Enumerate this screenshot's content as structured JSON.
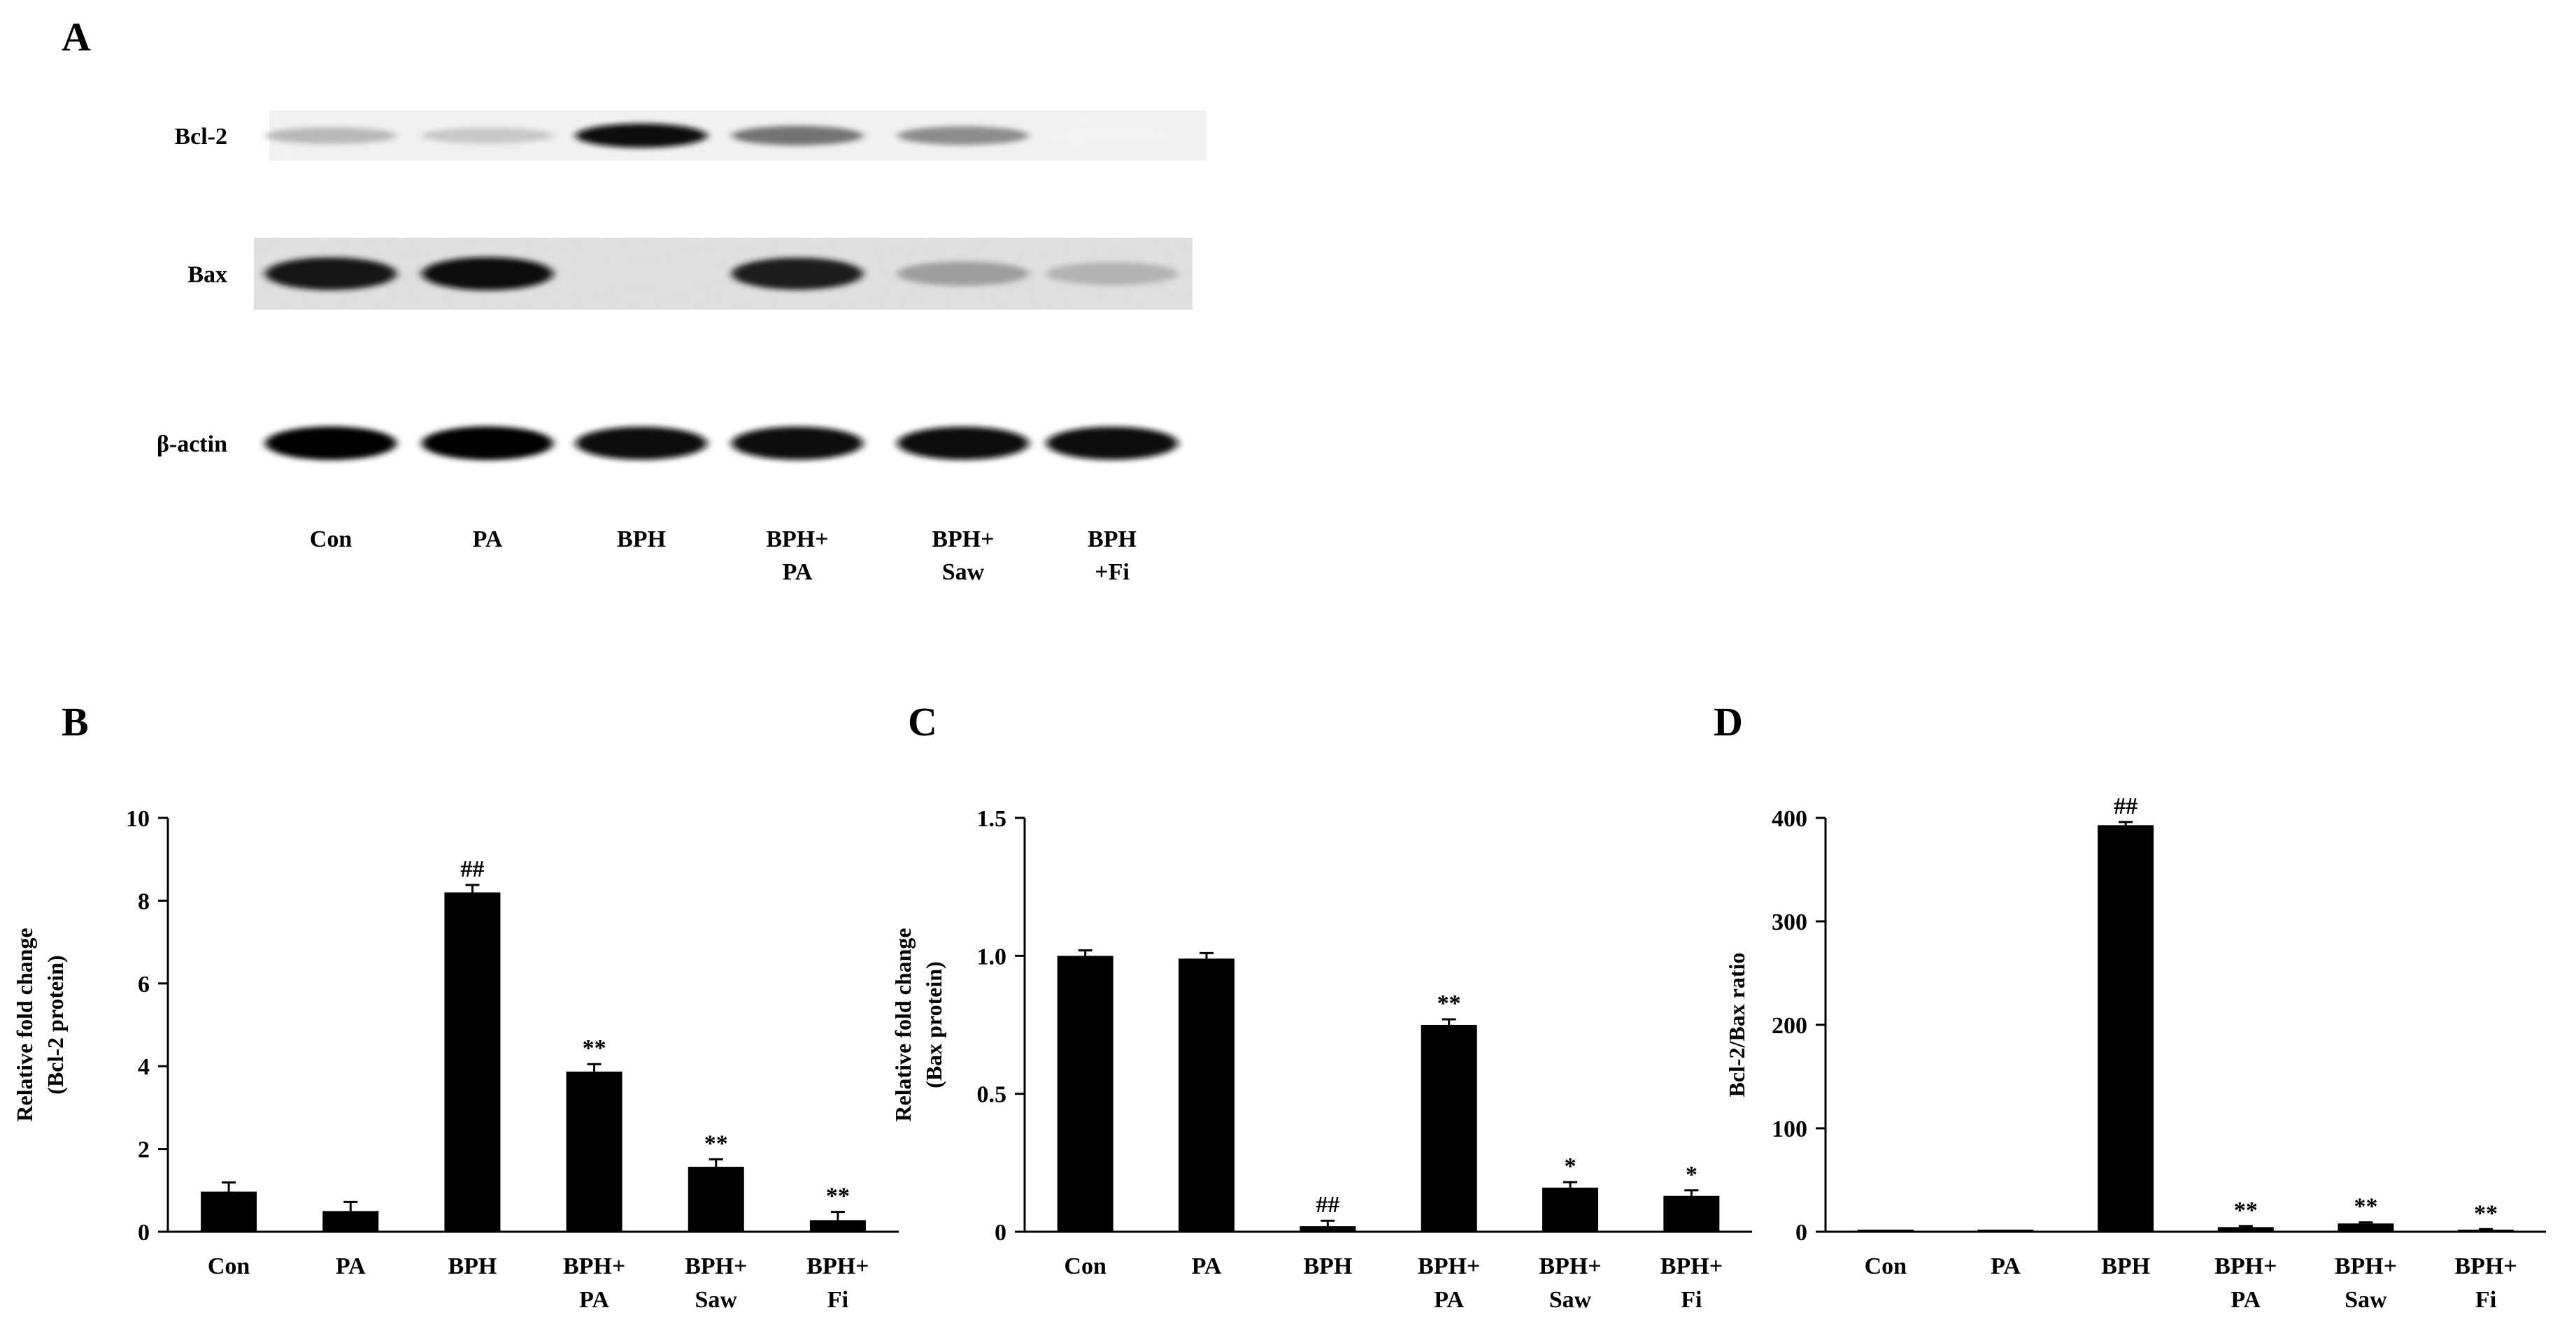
{
  "panels": {
    "A": {
      "letter": "A",
      "rows": [
        {
          "label": "Bcl-2",
          "intensity": [
            0.28,
            0.22,
            0.95,
            0.55,
            0.45,
            0.05
          ]
        },
        {
          "label": "Bax",
          "intensity": [
            0.92,
            0.95,
            0.12,
            0.88,
            0.38,
            0.3
          ]
        },
        {
          "label": "β-actin",
          "intensity": [
            0.98,
            0.99,
            0.95,
            0.96,
            0.96,
            0.95
          ]
        }
      ],
      "lanes": [
        [
          "Con"
        ],
        [
          "PA"
        ],
        [
          "BPH"
        ],
        [
          "BPH+",
          "PA"
        ],
        [
          "BPH+",
          "Saw"
        ],
        [
          "BPH",
          "+Fi"
        ]
      ]
    }
  },
  "chart_data": [
    {
      "panel": "B",
      "type": "bar",
      "categories": [
        [
          "Con"
        ],
        [
          "PA"
        ],
        [
          "BPH"
        ],
        [
          "BPH+",
          "PA"
        ],
        [
          "BPH+",
          "Saw"
        ],
        [
          "BPH+",
          "Fi"
        ]
      ],
      "values": [
        0.97,
        0.5,
        8.2,
        3.87,
        1.57,
        0.28
      ],
      "errors": [
        0.22,
        0.22,
        0.18,
        0.18,
        0.18,
        0.2
      ],
      "annotations": [
        "",
        "",
        "##",
        "**",
        "**",
        "**"
      ],
      "ylabel": [
        "Relative fold change",
        "(Bcl-2 protein)"
      ],
      "ylim": [
        0,
        10
      ],
      "yticks": [
        0,
        2,
        4,
        6,
        8,
        10
      ],
      "ytick_labels": [
        "0",
        "2",
        "4",
        "6",
        "8",
        "10"
      ],
      "color": "#000000"
    },
    {
      "panel": "C",
      "type": "bar",
      "categories": [
        [
          "Con"
        ],
        [
          "PA"
        ],
        [
          "BPH"
        ],
        [
          "BPH+",
          "PA"
        ],
        [
          "BPH+",
          "Saw"
        ],
        [
          "BPH+",
          "Fi"
        ]
      ],
      "values": [
        1.0,
        0.99,
        0.02,
        0.75,
        0.16,
        0.13
      ],
      "errors": [
        0.02,
        0.02,
        0.02,
        0.02,
        0.02,
        0.02
      ],
      "annotations": [
        "",
        "",
        "##",
        "**",
        "*",
        "*"
      ],
      "ylabel": [
        "Relative fold change",
        "(Bax protein)"
      ],
      "ylim": [
        0,
        1.5
      ],
      "yticks": [
        0,
        0.5,
        1.0,
        1.5
      ],
      "ytick_labels": [
        "0",
        "0.5",
        "1.0",
        "1.5"
      ],
      "color": "#000000"
    },
    {
      "panel": "D",
      "type": "bar",
      "categories": [
        [
          "Con"
        ],
        [
          "PA"
        ],
        [
          "BPH"
        ],
        [
          "BPH+",
          "PA"
        ],
        [
          "BPH+",
          "Saw"
        ],
        [
          "BPH+",
          "Fi"
        ]
      ],
      "values": [
        0.5,
        0.5,
        393,
        4.5,
        8,
        2
      ],
      "errors": [
        0,
        0,
        3,
        1,
        1,
        0.5
      ],
      "annotations": [
        "",
        "",
        "##",
        "**",
        "**",
        "**"
      ],
      "ylabel": [
        "Bcl-2/Bax ratio"
      ],
      "ylim": [
        0,
        400
      ],
      "yticks": [
        0,
        100,
        200,
        300,
        400
      ],
      "ytick_labels": [
        "0",
        "100",
        "200",
        "300",
        "400"
      ],
      "color": "#000000"
    }
  ]
}
